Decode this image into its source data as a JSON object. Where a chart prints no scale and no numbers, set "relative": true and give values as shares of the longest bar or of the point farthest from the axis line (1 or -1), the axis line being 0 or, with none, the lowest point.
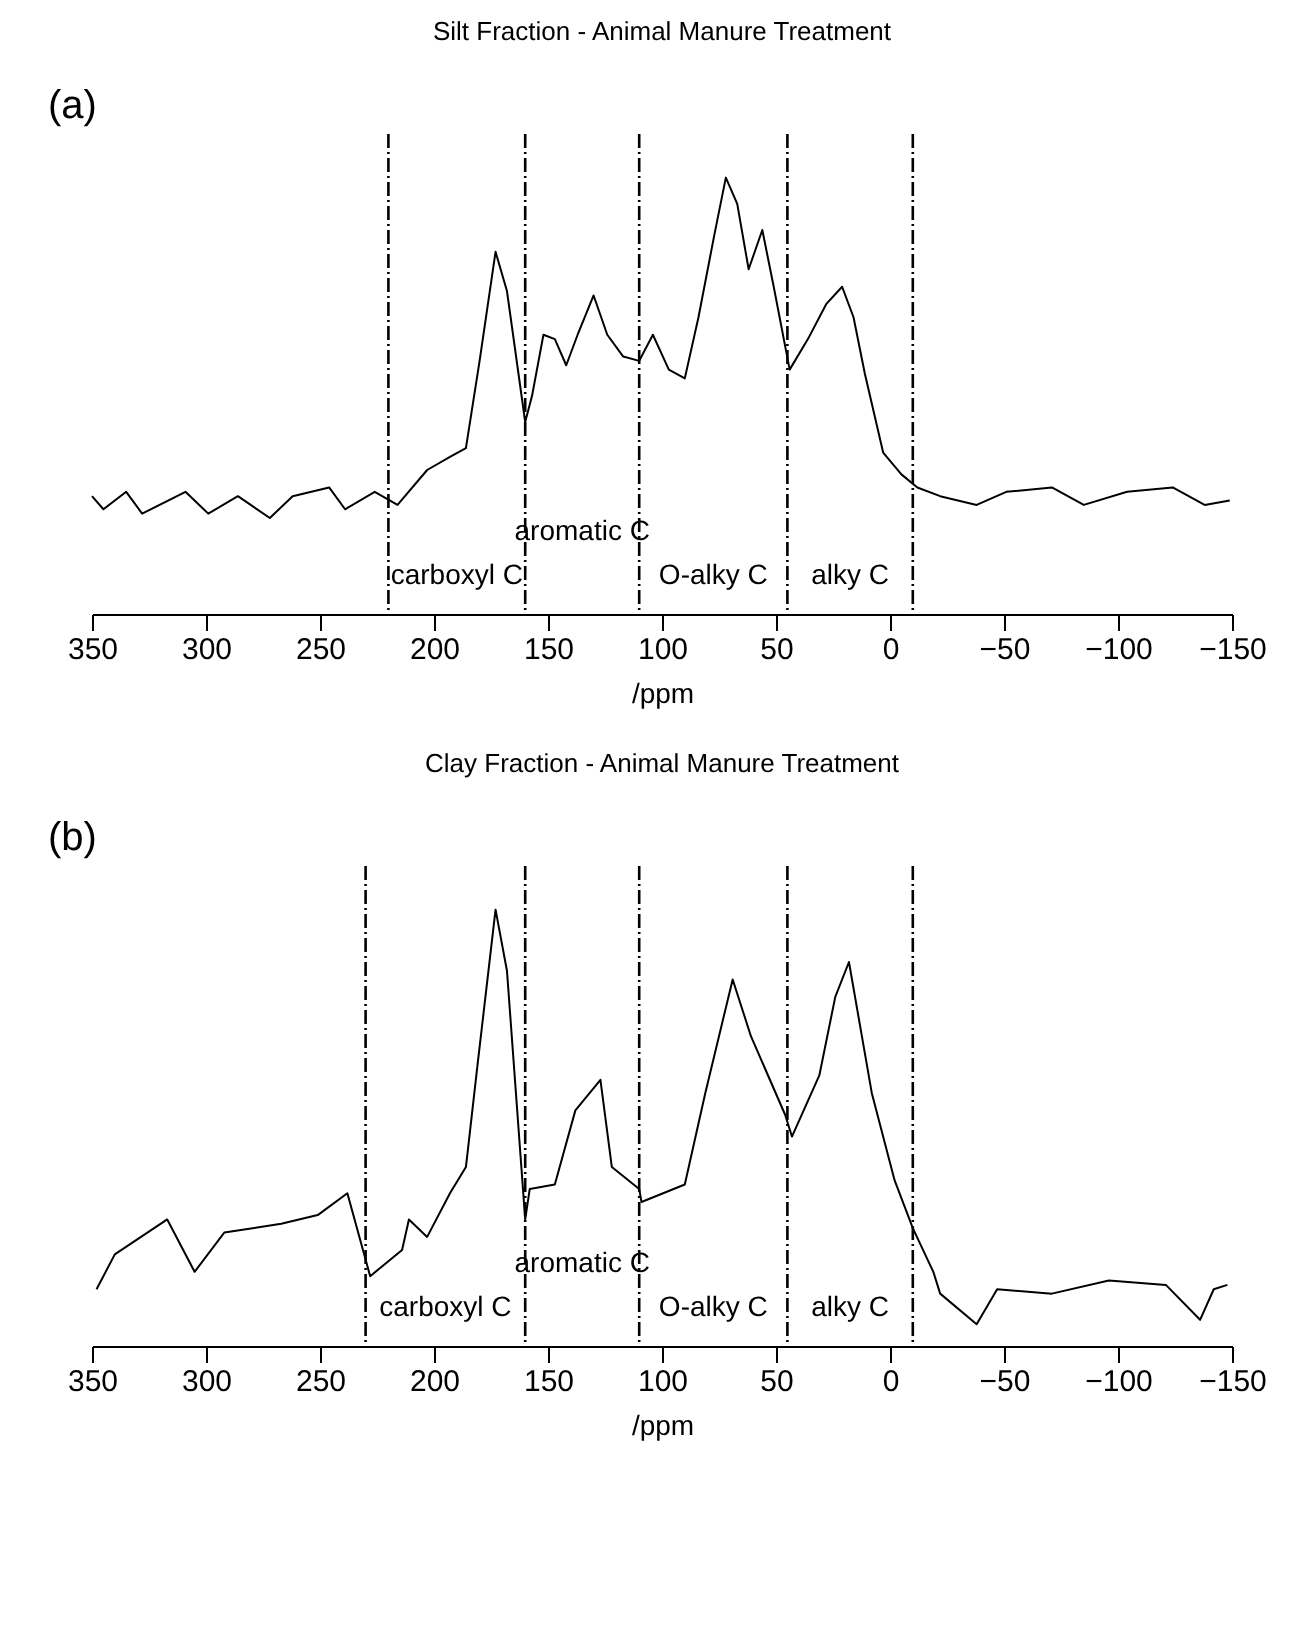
{
  "chart_data": [
    {
      "type": "line",
      "title": "Silt Fraction - Animal Manure Treatment",
      "xlabel": "/ppm",
      "relative": true,
      "grid": false,
      "xlim": [
        350,
        -150
      ],
      "xticks": [
        350,
        300,
        250,
        200,
        150,
        100,
        50,
        0,
        {
          "value": -50,
          "label": "−50"
        },
        {
          "value": -100,
          "label": "−100"
        },
        {
          "value": -150,
          "label": "−150"
        }
      ],
      "x": [
        350,
        345,
        335,
        328,
        309,
        299,
        286,
        272,
        262,
        246,
        239,
        226,
        216,
        203,
        193,
        186,
        180,
        173,
        168,
        160,
        157,
        152,
        147,
        142,
        137,
        130,
        124,
        117,
        110,
        104,
        97,
        90,
        84,
        77,
        72,
        67,
        62,
        56,
        51,
        44,
        36,
        28,
        21,
        16,
        11,
        3,
        -5,
        -12,
        -22,
        -38,
        -51,
        -71,
        -85,
        -104,
        -124,
        -138,
        -149
      ],
      "series": [
        {
          "color": "#000000",
          "values": [
            0.27,
            0.24,
            0.28,
            0.23,
            0.28,
            0.23,
            0.27,
            0.22,
            0.27,
            0.29,
            0.24,
            0.28,
            0.25,
            0.33,
            0.36,
            0.38,
            0.58,
            0.83,
            0.74,
            0.44,
            0.5,
            0.64,
            0.63,
            0.57,
            0.64,
            0.73,
            0.64,
            0.59,
            0.58,
            0.64,
            0.56,
            0.54,
            0.68,
            0.87,
            1.0,
            0.94,
            0.79,
            0.88,
            0.75,
            0.56,
            0.63,
            0.71,
            0.75,
            0.68,
            0.55,
            0.37,
            0.32,
            0.29,
            0.27,
            0.25,
            0.28,
            0.29,
            0.25,
            0.28,
            0.29,
            0.25,
            0.26
          ]
        }
      ],
      "ref_lines": [
        {
          "axis": "x",
          "value": 220,
          "line_style": "dashed"
        },
        {
          "axis": "x",
          "value": 160,
          "line_style": "dashed"
        },
        {
          "axis": "x",
          "value": 110,
          "line_style": "dashed"
        },
        {
          "axis": "x",
          "value": 45,
          "line_style": "dashed"
        },
        {
          "axis": "x",
          "value": -10,
          "line_style": "dashed"
        }
      ],
      "annotations": [
        "(a)",
        "carboxyl C",
        "aromatic C",
        "O-alky C",
        "alky C"
      ]
    },
    {
      "type": "line",
      "title": "Clay Fraction - Animal Manure Treatment",
      "xlabel": "/ppm",
      "relative": true,
      "grid": false,
      "xlim": [
        350,
        -150
      ],
      "xticks": [
        350,
        300,
        250,
        200,
        150,
        100,
        50,
        0,
        {
          "value": -50,
          "label": "−50"
        },
        {
          "value": -100,
          "label": "−100"
        },
        {
          "value": -150,
          "label": "−150"
        }
      ],
      "x": [
        348,
        340,
        317,
        305,
        292,
        267,
        251,
        238,
        228,
        214,
        211,
        203,
        193,
        186,
        181,
        173,
        168,
        160,
        158,
        147,
        138,
        127,
        122,
        110,
        109,
        90,
        81,
        69,
        61,
        46,
        43,
        31,
        24,
        18,
        8,
        -2,
        -10,
        -19,
        -22,
        -38,
        -47,
        -71,
        -96,
        -121,
        -136,
        -142,
        -148
      ],
      "series": [
        {
          "color": "#000000",
          "values": [
            0.13,
            0.21,
            0.29,
            0.17,
            0.26,
            0.28,
            0.3,
            0.35,
            0.16,
            0.22,
            0.29,
            0.25,
            0.35,
            0.41,
            0.64,
            1.0,
            0.86,
            0.29,
            0.36,
            0.37,
            0.54,
            0.61,
            0.41,
            0.36,
            0.33,
            0.37,
            0.58,
            0.84,
            0.71,
            0.53,
            0.48,
            0.62,
            0.8,
            0.88,
            0.58,
            0.38,
            0.27,
            0.17,
            0.12,
            0.05,
            0.13,
            0.12,
            0.15,
            0.14,
            0.06,
            0.13,
            0.14
          ]
        }
      ],
      "ref_lines": [
        {
          "axis": "x",
          "value": 230,
          "line_style": "dashed"
        },
        {
          "axis": "x",
          "value": 160,
          "line_style": "dashed"
        },
        {
          "axis": "x",
          "value": 110,
          "line_style": "dashed"
        },
        {
          "axis": "x",
          "value": 45,
          "line_style": "dashed"
        },
        {
          "axis": "x",
          "value": -10,
          "line_style": "dashed"
        }
      ],
      "annotations": [
        "(b)",
        "carboxyl C",
        "aromatic C",
        "O-alky C",
        "alky C"
      ]
    }
  ]
}
